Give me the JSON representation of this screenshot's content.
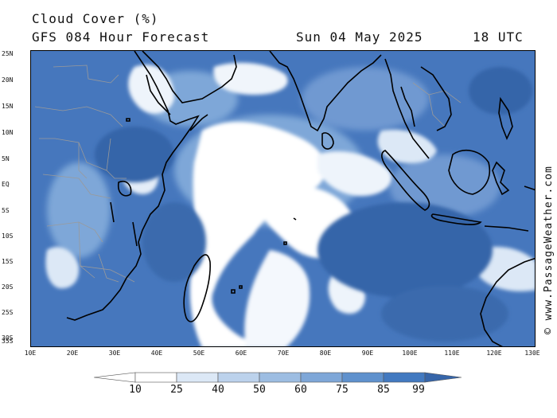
{
  "header": {
    "title": "Cloud Cover (%)",
    "model": "GFS 084 Hour Forecast",
    "date": "Sun 04 May 2025",
    "time": "18 UTC"
  },
  "map": {
    "lat_labels": [
      "25N",
      "20N",
      "15N",
      "10N",
      "5N",
      "EQ",
      "5S",
      "10S",
      "15S",
      "20S",
      "25S",
      "30S",
      "35S"
    ],
    "lon_labels": [
      "10E",
      "20E",
      "30E",
      "40E",
      "50E",
      "60E",
      "70E",
      "80E",
      "90E",
      "100E",
      "110E",
      "120E",
      "130E"
    ],
    "lat_range": [
      -35,
      25
    ],
    "lon_range": [
      10,
      130
    ]
  },
  "legend": {
    "labels": [
      "10",
      "25",
      "40",
      "50",
      "60",
      "75",
      "85",
      "99"
    ],
    "colors": [
      "#ffffff",
      "#dce8f6",
      "#bcd2ec",
      "#9dbde2",
      "#7ea7d8",
      "#5f91cd",
      "#4279c0",
      "#3665a9"
    ]
  },
  "credit": "© www.PassageWeather.com",
  "colors": {
    "cloud_dark": "#3f6fb5",
    "cloud_mid": "#7ea7d8",
    "cloud_light": "#dce8f6",
    "coast": "#000000",
    "border": "#999999"
  }
}
